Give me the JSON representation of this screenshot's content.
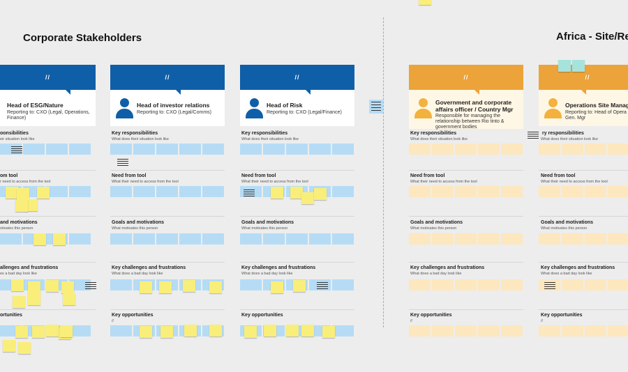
{
  "sections": {
    "corporate": "Corporate Stakeholders",
    "africa": "Africa - Site/Re"
  },
  "cards": [
    {
      "id": "esg",
      "theme": "blue",
      "title": "Head of ESG/Nature",
      "sub": "Reporting to: CXO (Legal, Operations, Finance)"
    },
    {
      "id": "ir",
      "theme": "blue",
      "title": "Head of investor relations",
      "sub": "Reporting to: CXO (Legal/Comms)"
    },
    {
      "id": "risk",
      "theme": "blue",
      "title": "Head of Risk",
      "sub": "Reporting to: CXO (Legal/Finance)"
    },
    {
      "id": "gov",
      "theme": "orange",
      "title": "Government and corporate affairs officer / Country Mgr",
      "sub": "Responsible for managing the relationship between Rio tinto & government bodies"
    },
    {
      "id": "site",
      "theme": "orange",
      "title": "Operations Site Manage",
      "sub": "Reporting to: Head of Opera Gen. Mgr"
    }
  ],
  "card_band_mark": "//",
  "rows": [
    {
      "title": "Key responsibilities",
      "sub": "What does their situation look like"
    },
    {
      "title": "Need from tool",
      "sub": "What their need to access from the tool"
    },
    {
      "title": "Goals and motivations",
      "sub": "What motivates this person"
    },
    {
      "title": "Key challenges and frustrations",
      "sub": "What does a bad day look like"
    },
    {
      "title": "Key opportunities",
      "sub": "//"
    }
  ],
  "left_row_titles_clipped": [
    {
      "title": "oonsibilities",
      "sub": "eir situation look like"
    },
    {
      "title": "om tool",
      "sub": "r need to access from the tool"
    },
    {
      "title": "and motivations",
      "sub": "otivates this person"
    },
    {
      "title": "allenges and frustrations",
      "sub": "es a bad day look like"
    },
    {
      "title": "ortunities",
      "sub": ""
    }
  ],
  "site_row_titles_clipped": [
    {
      "title": "ry responsibilities",
      "sub": "What does their situation look like"
    },
    {
      "title": "Need from tool",
      "sub": "What their need to access from the tool"
    },
    {
      "title": "Goals and motivations",
      "sub": "What motivates this person"
    },
    {
      "title": "Key challenges and frustrations",
      "sub": "What does a bad day look like"
    },
    {
      "title": "Key opportunities",
      "sub": "//"
    }
  ],
  "colors": {
    "blue": "#0f5fa8",
    "orange": "#eca33a",
    "sticky": "#f9ee7a",
    "cell_blue": "#b6dcf5",
    "cell_orange": "#fde7bf"
  }
}
